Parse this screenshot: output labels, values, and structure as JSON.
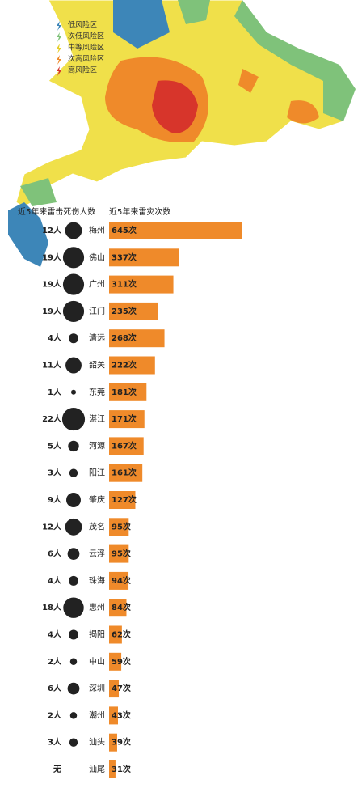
{
  "map": {
    "legend": [
      "低风险区",
      "次低风险区",
      "中等风险区",
      "次高风险区",
      "高风险区"
    ]
  },
  "chart_data": {
    "type": "bar",
    "categories": [
      "梅州",
      "佛山",
      "广州",
      "江门",
      "清远",
      "韶关",
      "东莞",
      "湛江",
      "河源",
      "阳江",
      "肇庆",
      "茂名",
      "云浮",
      "珠海",
      "惠州",
      "揭阳",
      "中山",
      "深圳",
      "潮州",
      "汕头",
      "汕尾"
    ],
    "series": [
      {
        "name": "近5年来雷击死伤人数",
        "color": "#222222",
        "values": [
          12,
          19,
          19,
          19,
          4,
          11,
          1,
          22,
          5,
          3,
          9,
          12,
          6,
          4,
          18,
          4,
          2,
          6,
          2,
          3,
          0
        ],
        "value_labels": [
          "12人",
          "19人",
          "19人",
          "19人",
          "4人",
          "11人",
          "1人",
          "22人",
          "5人",
          "3人",
          "9人",
          "12人",
          "6人",
          "4人",
          "18人",
          "4人",
          "2人",
          "6人",
          "2人",
          "3人",
          "无"
        ]
      },
      {
        "name": "近5年来雷灾次数",
        "color": "#ef8a2a",
        "values": [
          645,
          337,
          311,
          235,
          268,
          222,
          181,
          171,
          167,
          161,
          127,
          95,
          95,
          94,
          84,
          62,
          59,
          47,
          43,
          39,
          31
        ],
        "value_labels": [
          "645次",
          "337次",
          "311次",
          "235次",
          "268次",
          "222次",
          "181次",
          "171次",
          "167次",
          "161次",
          "127次",
          "95次",
          "95次",
          "94次",
          "84次",
          "62次",
          "59次",
          "47次",
          "43次",
          "39次",
          "31次"
        ]
      }
    ]
  }
}
